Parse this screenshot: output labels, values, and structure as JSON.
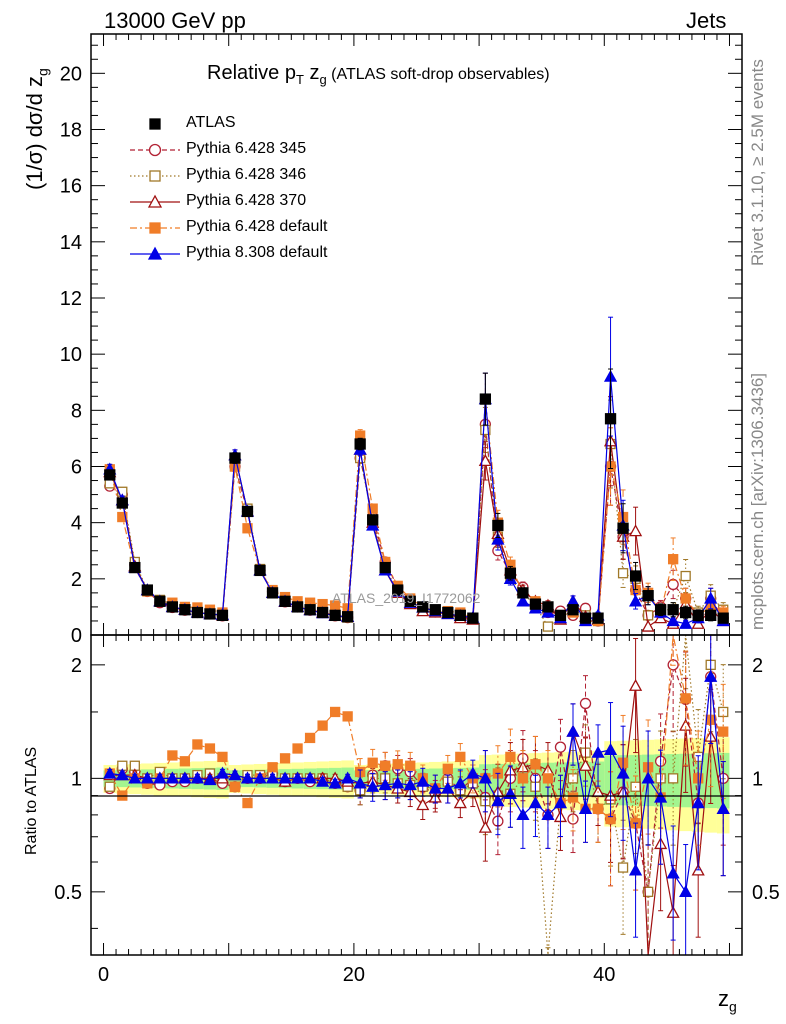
{
  "header": {
    "left": "13000 GeV pp",
    "right": "Jets"
  },
  "side_labels": {
    "rivet": "Rivet 3.1.10, ≥ 2.5M events",
    "site": "mcplots.cern.ch [arXiv:1306.3436]"
  },
  "chart_data": {
    "type": "scatter",
    "title_prefix": "Relative p",
    "title_sub": "T",
    "title_mid": " z",
    "title_sub2": "g",
    "title_suffix": " (ATLAS soft-drop observables)",
    "watermark": "ATLAS_2019_I1772062",
    "ylabel_main": "(1/σ) dσ/d z",
    "ylabel_main_sub": "g",
    "ylabel_ratio": "Ratio to ATLAS",
    "xlabel": "z",
    "xlabel_sub": "g",
    "xlim": [
      -1,
      51
    ],
    "ylim_main": [
      0,
      21.4
    ],
    "ylim_ratio": [
      0.34,
      2.4
    ],
    "ratio_scale": "log",
    "xticks": [
      "0",
      "20",
      "40"
    ],
    "xtick_values": [
      0,
      20,
      40
    ],
    "yticks_main": [
      "0",
      "2",
      "4",
      "6",
      "8",
      "10",
      "12",
      "14",
      "16",
      "18",
      "20"
    ],
    "ytick_values_main": [
      0,
      2,
      4,
      6,
      8,
      10,
      12,
      14,
      16,
      18,
      20
    ],
    "yticks_ratio": [
      "0.5",
      "1",
      "2"
    ],
    "ytick_values_ratio": [
      0.5,
      1,
      2
    ],
    "legend_position": "top-left",
    "x": [
      0.5,
      1.5,
      2.5,
      3.5,
      4.5,
      5.5,
      6.5,
      7.5,
      8.5,
      9.5,
      10.5,
      11.5,
      12.5,
      13.5,
      14.5,
      15.5,
      16.5,
      17.5,
      18.5,
      19.5,
      20.5,
      21.5,
      22.5,
      23.5,
      24.5,
      25.5,
      26.5,
      27.5,
      28.5,
      29.5,
      30.5,
      31.5,
      32.5,
      33.5,
      34.5,
      35.5,
      36.5,
      37.5,
      38.5,
      39.5,
      40.5,
      41.5,
      42.5,
      43.5,
      44.5,
      45.5,
      46.5,
      47.5,
      48.5,
      49.5
    ],
    "series": [
      {
        "name": "ATLAS",
        "color": "#000000",
        "marker": "square-filled",
        "line": "none",
        "values": [
          5.7,
          4.7,
          2.4,
          1.6,
          1.2,
          1.0,
          0.9,
          0.8,
          0.75,
          0.7,
          6.3,
          4.4,
          2.3,
          1.5,
          1.2,
          1.0,
          0.9,
          0.8,
          0.7,
          0.65,
          6.8,
          4.1,
          2.4,
          1.6,
          1.2,
          1.0,
          0.9,
          0.8,
          0.7,
          0.6,
          8.4,
          3.9,
          2.2,
          1.5,
          1.1,
          1.0,
          0.7,
          0.9,
          0.6,
          0.6,
          7.7,
          3.8,
          2.1,
          1.4,
          0.9,
          0.9,
          0.8,
          0.7,
          0.7,
          0.6
        ]
      },
      {
        "name": "Pythia 6.428 345",
        "color": "#b22234",
        "marker": "circle-open",
        "line": "dashed",
        "values": [
          5.3,
          5.0,
          2.5,
          1.55,
          1.15,
          0.98,
          0.88,
          0.8,
          0.75,
          0.68,
          6.0,
          4.4,
          2.3,
          1.55,
          1.18,
          1.0,
          0.88,
          0.8,
          0.68,
          0.62,
          6.3,
          4.2,
          2.6,
          1.7,
          1.25,
          0.95,
          0.82,
          0.8,
          0.65,
          0.6,
          7.5,
          3.0,
          2.2,
          1.7,
          1.1,
          0.8,
          0.85,
          0.7,
          0.95,
          0.5,
          6.0,
          3.5,
          1.6,
          0.7,
          1.0,
          1.8,
          1.3,
          0.6,
          1.3,
          0.6
        ]
      },
      {
        "name": "Pythia 6.428 346",
        "color": "#a07828",
        "marker": "square-open",
        "line": "dotted",
        "values": [
          5.4,
          5.1,
          2.6,
          1.6,
          1.25,
          1.0,
          0.9,
          0.82,
          0.77,
          0.7,
          6.0,
          4.5,
          2.35,
          1.55,
          1.2,
          1.0,
          0.9,
          0.8,
          0.68,
          0.62,
          6.3,
          4.1,
          2.4,
          1.55,
          1.15,
          0.95,
          0.85,
          0.78,
          0.65,
          0.58,
          7.3,
          3.5,
          2.0,
          1.5,
          1.05,
          0.3,
          0.6,
          0.9,
          0.7,
          0.5,
          6.8,
          2.2,
          2.0,
          0.7,
          0.9,
          0.9,
          2.1,
          0.8,
          1.4,
          0.9
        ]
      },
      {
        "name": "Pythia 6.428 370",
        "color": "#a01010",
        "marker": "triangle-open",
        "line": "solid",
        "values": [
          5.8,
          4.8,
          2.45,
          1.6,
          1.2,
          1.0,
          0.9,
          0.8,
          0.75,
          0.7,
          6.4,
          4.4,
          2.3,
          1.5,
          1.18,
          1.0,
          0.9,
          0.8,
          0.7,
          0.64,
          6.6,
          4.0,
          2.3,
          1.5,
          1.1,
          0.85,
          0.8,
          0.75,
          0.6,
          0.55,
          6.2,
          3.6,
          2.3,
          1.6,
          1.2,
          1.05,
          0.55,
          1.2,
          0.65,
          0.55,
          6.9,
          3.5,
          3.7,
          0.3,
          0.6,
          0.4,
          1.1,
          0.4,
          0.9,
          0.5
        ]
      },
      {
        "name": "Pythia 6.428 default",
        "color": "#f07d28",
        "marker": "square-filled",
        "line": "dashdot",
        "values": [
          5.9,
          4.2,
          2.4,
          1.55,
          1.2,
          1.15,
          1.0,
          0.98,
          0.9,
          0.8,
          6.0,
          3.8,
          2.3,
          1.6,
          1.35,
          1.2,
          1.15,
          1.1,
          1.05,
          0.95,
          7.1,
          4.5,
          2.6,
          1.75,
          1.3,
          1.0,
          0.85,
          0.85,
          0.8,
          0.6,
          8.4,
          4.0,
          2.5,
          1.5,
          1.2,
          1.0,
          0.6,
          0.8,
          0.5,
          0.5,
          6.0,
          4.2,
          1.6,
          1.5,
          0.8,
          2.7,
          1.3,
          0.7,
          1.0,
          0.8
        ]
      },
      {
        "name": "Pythia 8.308 default",
        "color": "#0000e6",
        "marker": "triangle-filled",
        "line": "solid",
        "values": [
          5.9,
          4.8,
          2.4,
          1.6,
          1.2,
          1.0,
          0.9,
          0.8,
          0.74,
          0.72,
          6.4,
          4.4,
          2.3,
          1.5,
          1.2,
          1.0,
          0.88,
          0.78,
          0.68,
          0.65,
          6.6,
          3.9,
          2.3,
          1.55,
          1.15,
          0.98,
          0.85,
          0.75,
          0.68,
          0.62,
          8.4,
          3.4,
          2.0,
          1.2,
          0.95,
          0.8,
          0.6,
          1.2,
          0.5,
          0.7,
          9.2,
          3.9,
          1.2,
          1.4,
          0.8,
          0.5,
          0.4,
          0.6,
          1.3,
          0.5
        ]
      }
    ],
    "ratio_series": [
      {
        "name": "Pythia 6.428 345",
        "values": [
          0.94,
          1.06,
          1.04,
          0.97,
          0.96,
          0.98,
          0.98,
          1.0,
          1.0,
          0.97,
          0.95,
          1.0,
          1.0,
          1.03,
          0.98,
          1.0,
          0.98,
          1.0,
          0.97,
          0.95,
          0.93,
          1.02,
          1.08,
          1.06,
          1.04,
          0.95,
          0.91,
          1.0,
          0.93,
          1.0,
          0.89,
          0.77,
          1.0,
          1.13,
          1.0,
          0.8,
          1.21,
          0.78,
          1.58,
          0.83,
          0.78,
          0.92,
          0.76,
          0.5,
          1.11,
          2.0,
          1.62,
          0.86,
          1.86,
          1.0
        ]
      },
      {
        "name": "Pythia 6.428 346",
        "values": [
          0.95,
          1.08,
          1.08,
          1.0,
          1.04,
          1.0,
          1.0,
          1.02,
          1.03,
          1.0,
          0.95,
          1.02,
          1.02,
          1.03,
          1.0,
          1.0,
          1.0,
          1.0,
          0.97,
          0.95,
          0.93,
          1.0,
          1.0,
          0.97,
          0.96,
          0.95,
          0.94,
          0.98,
          0.93,
          0.97,
          0.87,
          0.9,
          0.91,
          1.0,
          0.95,
          0.3,
          0.86,
          1.0,
          1.17,
          0.83,
          0.88,
          0.58,
          0.95,
          0.5,
          1.0,
          1.0,
          2.6,
          1.14,
          2.0,
          1.5
        ]
      },
      {
        "name": "Pythia 6.428 370",
        "values": [
          1.02,
          1.02,
          1.02,
          1.0,
          1.0,
          1.0,
          1.0,
          1.0,
          1.0,
          1.0,
          1.02,
          1.0,
          1.0,
          1.0,
          0.98,
          1.0,
          1.0,
          1.0,
          1.0,
          0.98,
          0.97,
          0.98,
          0.96,
          0.94,
          0.92,
          0.85,
          0.89,
          0.94,
          0.86,
          0.92,
          0.74,
          0.92,
          1.05,
          1.07,
          1.09,
          1.05,
          0.79,
          1.33,
          1.08,
          0.92,
          0.9,
          0.92,
          1.76,
          0.21,
          0.67,
          0.44,
          1.38,
          0.57,
          1.29,
          0.83
        ]
      },
      {
        "name": "Pythia 6.428 default",
        "values": [
          1.03,
          0.9,
          1.0,
          0.97,
          1.0,
          1.15,
          1.11,
          1.23,
          1.2,
          1.14,
          0.95,
          0.86,
          1.0,
          1.07,
          1.13,
          1.2,
          1.28,
          1.38,
          1.5,
          1.46,
          1.04,
          1.1,
          1.08,
          1.09,
          1.08,
          1.0,
          0.94,
          1.06,
          1.14,
          1.0,
          1.0,
          1.03,
          1.14,
          1.0,
          1.09,
          1.0,
          0.86,
          0.89,
          0.83,
          0.83,
          0.78,
          1.1,
          0.76,
          1.07,
          0.89,
          3.0,
          1.63,
          1.0,
          1.43,
          1.33
        ]
      },
      {
        "name": "Pythia 8.308 default",
        "values": [
          1.03,
          1.02,
          1.0,
          1.0,
          1.0,
          1.0,
          1.0,
          1.0,
          0.99,
          1.03,
          1.02,
          1.0,
          1.0,
          1.0,
          1.0,
          1.0,
          1.0,
          0.98,
          0.97,
          1.0,
          0.97,
          0.95,
          0.96,
          0.97,
          0.96,
          0.98,
          0.94,
          0.94,
          0.97,
          1.03,
          1.0,
          0.87,
          0.91,
          0.8,
          0.86,
          0.8,
          0.86,
          1.33,
          0.83,
          1.17,
          1.19,
          1.03,
          0.57,
          1.0,
          0.89,
          0.56,
          0.5,
          0.86,
          1.86,
          0.83
        ]
      }
    ]
  }
}
